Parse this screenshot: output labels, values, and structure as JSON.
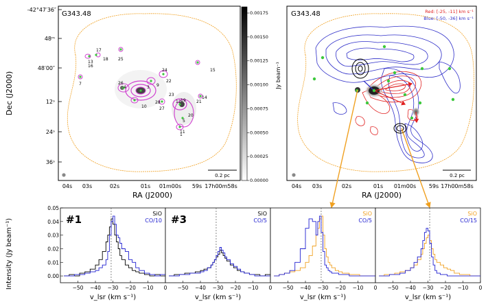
{
  "panel_left": {
    "source": "G343.48",
    "dec_ticks": [
      "-42°47′36″",
      "48ᵐ",
      "48′00″",
      "12ˢ",
      "24ˢ",
      "36ˢ"
    ],
    "ra_ticks": [
      "04s",
      "03s",
      "02s",
      "01s",
      "01m00s",
      "59s",
      "17h00m58s"
    ],
    "xlabel": "RA (J2000)",
    "ylabel": "Dec (J2000)",
    "scalebar": "0.2 pc",
    "colorbar": {
      "label": "Jy beam⁻¹",
      "ticks": [
        "0.00175",
        "0.00150",
        "0.00125",
        "0.00100",
        "0.00075",
        "0.00050",
        "0.00025",
        "0.00000"
      ]
    },
    "core_labels": [
      "17",
      "18",
      "13",
      "16",
      "25",
      "7",
      "26",
      "4",
      "3",
      "10",
      "28",
      "24",
      "22",
      "9",
      "23",
      "27",
      "19",
      "21",
      "20",
      "1",
      "5",
      "14",
      "15",
      "11",
      "12"
    ]
  },
  "panel_right": {
    "source": "G343.48",
    "legend_red": "Red: [-25, -11] km s⁻¹",
    "legend_blue": "Blue: [-50, -36] km s⁻¹",
    "ra_ticks": [
      "04s",
      "03s",
      "02s",
      "01s",
      "01m00s",
      "59s",
      "17h00m58s"
    ],
    "xlabel": "RA (J2000)",
    "scalebar": "0.2 pc"
  },
  "spectra": {
    "ylabel": "Intensity (Jy beam⁻¹)",
    "xlabel": "v_lsr (km s⁻¹)",
    "y_ticks": [
      "0.05",
      "0.04",
      "0.03",
      "0.02",
      "0.01",
      "0.00"
    ],
    "x_ticks": [
      "−50",
      "−40",
      "−30",
      "−20",
      "−10",
      "0"
    ],
    "panels": [
      {
        "label": "#1",
        "line1": "SiO",
        "line2": "CO/10",
        "c1": "#000000",
        "c2": "#1f1fd0"
      },
      {
        "label": "#3",
        "line1": "SiO",
        "line2": "CO/5",
        "c1": "#000000",
        "c2": "#1f1fd0"
      },
      {
        "label": "",
        "line1": "SiO",
        "line2": "CO/5",
        "c1": "#f0a020",
        "c2": "#1f1fd0"
      },
      {
        "label": "",
        "line1": "SiO",
        "line2": "CO/15",
        "c1": "#f0a020",
        "c2": "#1f1fd0"
      }
    ]
  },
  "chart_data": [
    {
      "type": "line",
      "title": "#1",
      "xlabel": "v_lsr (km s⁻¹)",
      "ylabel": "Intensity (Jy beam⁻¹)",
      "xlim": [
        -60,
        0
      ],
      "ylim": [
        -0.005,
        0.05
      ],
      "x": [
        -58,
        -55,
        -52,
        -49,
        -46,
        -43,
        -40,
        -38,
        -36,
        -34,
        -33,
        -32,
        -31,
        -30,
        -29,
        -28,
        -27,
        -26,
        -25,
        -23,
        -21,
        -19,
        -17,
        -15,
        -12,
        -9,
        -6,
        -3,
        0
      ],
      "series": [
        {
          "name": "SiO",
          "values": [
            0.0,
            0.001,
            0.0,
            0.002,
            0.003,
            0.005,
            0.008,
            0.012,
            0.018,
            0.025,
            0.03,
            0.036,
            0.042,
            0.038,
            0.03,
            0.025,
            0.02,
            0.015,
            0.012,
            0.008,
            0.006,
            0.004,
            0.003,
            0.002,
            0.001,
            0.0,
            0.001,
            0.0,
            0.0
          ]
        },
        {
          "name": "CO/10",
          "values": [
            0.0,
            0.0,
            0.001,
            0.001,
            0.002,
            0.003,
            0.004,
            0.006,
            0.008,
            0.012,
            0.018,
            0.03,
            0.04,
            0.044,
            0.038,
            0.03,
            0.028,
            0.024,
            0.02,
            0.018,
            0.012,
            0.01,
            0.006,
            0.004,
            0.002,
            0.001,
            0.0,
            0.001,
            0.0
          ]
        }
      ],
      "vline": -31
    },
    {
      "type": "line",
      "title": "#3",
      "xlabel": "v_lsr (km s⁻¹)",
      "ylabel": "Intensity (Jy beam⁻¹)",
      "xlim": [
        -60,
        0
      ],
      "ylim": [
        -0.005,
        0.05
      ],
      "x": [
        -58,
        -55,
        -52,
        -49,
        -46,
        -43,
        -40,
        -38,
        -36,
        -34,
        -33,
        -32,
        -31,
        -30,
        -29,
        -28,
        -27,
        -26,
        -25,
        -23,
        -21,
        -19,
        -17,
        -15,
        -12,
        -9,
        -6,
        -3,
        0
      ],
      "series": [
        {
          "name": "SiO",
          "values": [
            0.0,
            0.001,
            0.001,
            0.002,
            0.002,
            0.003,
            0.004,
            0.005,
            0.006,
            0.008,
            0.01,
            0.012,
            0.014,
            0.016,
            0.019,
            0.017,
            0.015,
            0.013,
            0.011,
            0.008,
            0.006,
            0.004,
            0.003,
            0.002,
            0.001,
            0.001,
            0.0,
            0.001,
            0.0
          ]
        },
        {
          "name": "CO/5",
          "values": [
            0.0,
            0.0,
            0.001,
            0.001,
            0.002,
            0.002,
            0.003,
            0.004,
            0.006,
            0.008,
            0.01,
            0.012,
            0.015,
            0.018,
            0.021,
            0.019,
            0.017,
            0.014,
            0.012,
            0.009,
            0.007,
            0.005,
            0.003,
            0.002,
            0.001,
            0.0,
            0.0,
            0.0,
            0.0
          ]
        }
      ],
      "vline": -31
    },
    {
      "type": "line",
      "title": "",
      "xlabel": "v_lsr (km s⁻¹)",
      "ylabel": "Intensity (Jy beam⁻¹)",
      "xlim": [
        -60,
        0
      ],
      "ylim": [
        -0.005,
        0.05
      ],
      "x": [
        -58,
        -55,
        -52,
        -49,
        -46,
        -43,
        -40,
        -38,
        -36,
        -34,
        -33,
        -32,
        -31,
        -30,
        -29,
        -28,
        -27,
        -26,
        -25,
        -23,
        -21,
        -19,
        -17,
        -15,
        -12,
        -9,
        -6,
        -3,
        0
      ],
      "series": [
        {
          "name": "SiO",
          "values": [
            0.0,
            0.001,
            0.002,
            0.003,
            0.004,
            0.006,
            0.01,
            0.015,
            0.022,
            0.03,
            0.035,
            0.042,
            0.044,
            0.03,
            0.02,
            0.014,
            0.01,
            0.008,
            0.006,
            0.004,
            0.003,
            0.002,
            0.002,
            0.001,
            0.001,
            0.0,
            0.0,
            0.0,
            0.0
          ]
        },
        {
          "name": "CO/5",
          "values": [
            0.0,
            0.001,
            0.002,
            0.004,
            0.01,
            0.02,
            0.035,
            0.042,
            0.04,
            0.03,
            0.04,
            0.044,
            0.032,
            0.018,
            0.008,
            0.006,
            0.004,
            0.003,
            0.002,
            0.002,
            0.001,
            0.001,
            0.001,
            0.0,
            0.0,
            0.0,
            0.0,
            0.0,
            0.0
          ]
        }
      ],
      "vline": -31
    },
    {
      "type": "line",
      "title": "",
      "xlabel": "v_lsr (km s⁻¹)",
      "ylabel": "Intensity (Jy beam⁻¹)",
      "xlim": [
        -60,
        0
      ],
      "ylim": [
        -0.005,
        0.05
      ],
      "x": [
        -58,
        -55,
        -52,
        -49,
        -46,
        -43,
        -40,
        -38,
        -36,
        -34,
        -33,
        -32,
        -31,
        -30,
        -29,
        -28,
        -27,
        -26,
        -25,
        -23,
        -21,
        -19,
        -17,
        -15,
        -12,
        -9,
        -6,
        -3,
        0
      ],
      "series": [
        {
          "name": "SiO",
          "values": [
            0.0,
            0.001,
            0.001,
            0.002,
            0.003,
            0.004,
            0.006,
            0.008,
            0.012,
            0.016,
            0.02,
            0.024,
            0.028,
            0.03,
            0.026,
            0.02,
            0.016,
            0.012,
            0.01,
            0.008,
            0.006,
            0.005,
            0.004,
            0.002,
            0.001,
            0.001,
            0.0,
            0.0,
            0.0
          ]
        },
        {
          "name": "CO/15",
          "values": [
            0.0,
            0.0,
            0.001,
            0.001,
            0.002,
            0.004,
            0.006,
            0.01,
            0.014,
            0.02,
            0.026,
            0.032,
            0.035,
            0.033,
            0.024,
            0.014,
            0.008,
            0.004,
            0.002,
            0.001,
            0.001,
            0.0,
            0.0,
            0.0,
            0.0,
            0.0,
            0.0,
            0.0,
            0.0
          ]
        }
      ],
      "vline": -29
    }
  ]
}
